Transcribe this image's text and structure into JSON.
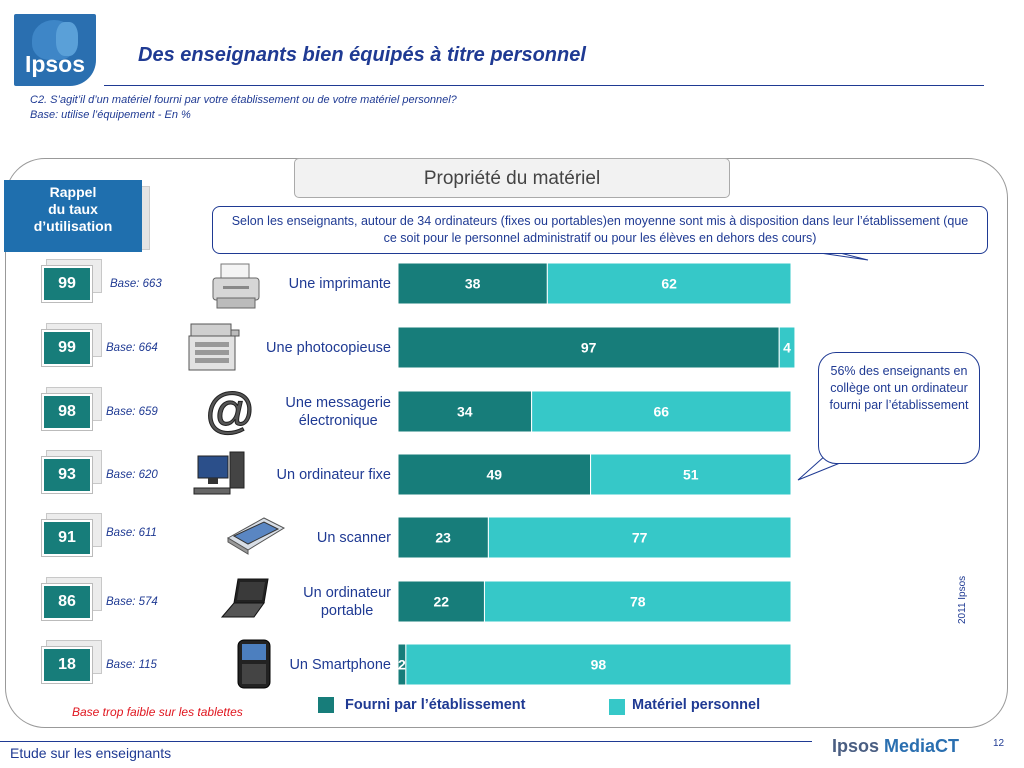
{
  "logo": {
    "text": "Ipsos"
  },
  "header": {
    "title": "Des enseignants bien équipés à titre personnel",
    "question_line1": "C2. S’agit’il d’un matériel fourni par votre établissement ou de votre matériel personnel?",
    "question_line2": "Base: utilise l’équipement - En %"
  },
  "section_title": "Propriété du matériel",
  "note_top": "Selon les enseignants, autour de 34 ordinateurs (fixes ou portables)en moyenne  sont mis à disposition dans leur l’établissement (que ce soit pour le personnel administratif  ou pour les élèves en dehors des cours)",
  "note_right": "56% des enseignants en collège ont un ordinateur fourni par l’établissement",
  "rappel": {
    "line1": "Rappel",
    "line2": "du taux",
    "line3": "d’utilisation"
  },
  "colors": {
    "etablissement": "#177d7a",
    "personnel": "#36c8c8"
  },
  "chart_data": {
    "type": "bar",
    "orientation": "horizontal",
    "stacked": true,
    "categories": [
      "Une imprimante",
      "Une photocopieuse",
      "Une messagerie électronique",
      "Un ordinateur fixe",
      "Un scanner",
      "Un ordinateur portable",
      "Un Smartphone"
    ],
    "series": [
      {
        "name": "Fourni par l’établissement",
        "values": [
          38,
          97,
          34,
          49,
          23,
          22,
          2
        ]
      },
      {
        "name": "Matériel personnel",
        "values": [
          62,
          4,
          66,
          51,
          77,
          78,
          98
        ]
      }
    ],
    "xlim": [
      0,
      100
    ],
    "legend": "bottom",
    "rappel_taux": [
      99,
      99,
      98,
      93,
      91,
      86,
      18
    ],
    "bases": [
      "Base: 663",
      "Base: 664",
      "Base: 659",
      "Base: 620",
      "Base: 611",
      "Base: 574",
      "Base: 115"
    ]
  },
  "items": [
    {
      "label_lines": [
        "Une imprimante"
      ],
      "rate": "99",
      "base": "Base: 663",
      "icon": "printer-icon"
    },
    {
      "label_lines": [
        "Une photocopieuse"
      ],
      "rate": "99",
      "base": "Base: 664",
      "icon": "photocopier-icon"
    },
    {
      "label_lines": [
        "Une messagerie",
        "électronique"
      ],
      "rate": "98",
      "base": "Base: 659",
      "icon": "at-sign-icon"
    },
    {
      "label_lines": [
        "Un ordinateur fixe"
      ],
      "rate": "93",
      "base": "Base: 620",
      "icon": "desktop-computer-icon"
    },
    {
      "label_lines": [
        "Un scanner"
      ],
      "rate": "91",
      "base": "Base: 611",
      "icon": "scanner-icon"
    },
    {
      "label_lines": [
        "Un ordinateur",
        "portable"
      ],
      "rate": "86",
      "base": "Base: 574",
      "icon": "laptop-icon"
    },
    {
      "label_lines": [
        "Un Smartphone"
      ],
      "rate": "18",
      "base": "Base: 115",
      "icon": "smartphone-icon"
    }
  ],
  "legend": {
    "etablissement": "Fourni par l’établissement",
    "personnel": "Matériel personnel"
  },
  "warning": "Base trop faible sur les tablettes",
  "side_text": "2011 Ipsos",
  "footer": {
    "left": "Etude sur les enseignants",
    "brand_a": "Ipsos ",
    "brand_b": "MediaCT",
    "page": "12"
  }
}
